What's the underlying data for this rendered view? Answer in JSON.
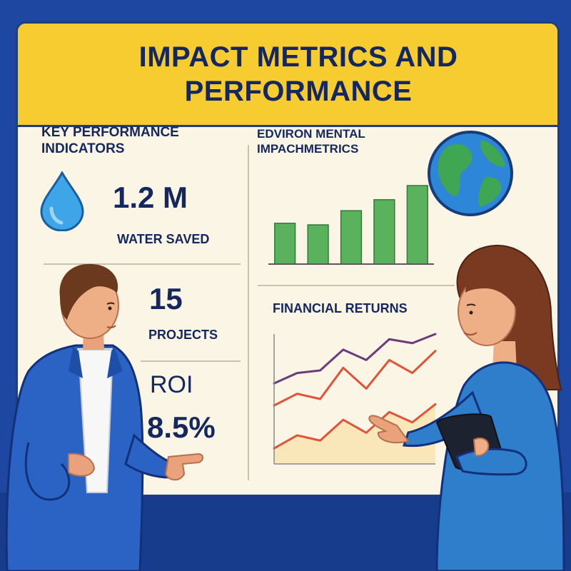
{
  "title": "IMPACT METRICS AND PERFORMANCE",
  "kpi": {
    "heading": "KEY PERFORMANCE INDICATORS",
    "water": {
      "value": "1.2 M",
      "label": "WATER SAVED",
      "icon": "water-drop-icon"
    },
    "projects": {
      "value": "15",
      "label": "PROJECTS"
    },
    "roi": {
      "label": "ROI",
      "value": "8.5%"
    }
  },
  "environmental": {
    "heading": "EDVIRON MENTAL IMPACHMETRICS",
    "icon": "globe-icon"
  },
  "financial": {
    "heading": "FINANCIAL RETURNS"
  },
  "chart_data": [
    {
      "type": "bar",
      "title": "EDVIRON MENTAL IMPACHMETRICS",
      "categories": [
        "",
        "",
        "",
        "",
        ""
      ],
      "values": [
        0.52,
        0.5,
        0.68,
        0.82,
        1.0
      ],
      "ylim": [
        0,
        1
      ],
      "color": "#5ab35c",
      "grid": false
    },
    {
      "type": "line",
      "title": "FINANCIAL RETURNS",
      "x": [
        0,
        1,
        2,
        3,
        4,
        5,
        6,
        7
      ],
      "series": [
        {
          "values": [
            0.62,
            0.7,
            0.72,
            0.88,
            0.8,
            0.96,
            0.93,
            1.0
          ],
          "color": "#6b3b7a"
        },
        {
          "values": [
            0.45,
            0.54,
            0.5,
            0.74,
            0.58,
            0.8,
            0.7,
            0.87
          ],
          "color": "#e05338"
        },
        {
          "values": [
            0.12,
            0.22,
            0.18,
            0.34,
            0.24,
            0.4,
            0.32,
            0.46
          ],
          "color": "#e05338"
        }
      ],
      "ylim": [
        0,
        1
      ],
      "grid": false
    }
  ],
  "colors": {
    "background": "#1d47a1",
    "title_band": "#f6cc31",
    "board": "#fbf5e6",
    "text": "#14285f",
    "bars": "#5ab35c",
    "globe_ocean": "#2d86d8",
    "globe_land": "#3fa654",
    "water_drop": "#3ea6e8"
  }
}
